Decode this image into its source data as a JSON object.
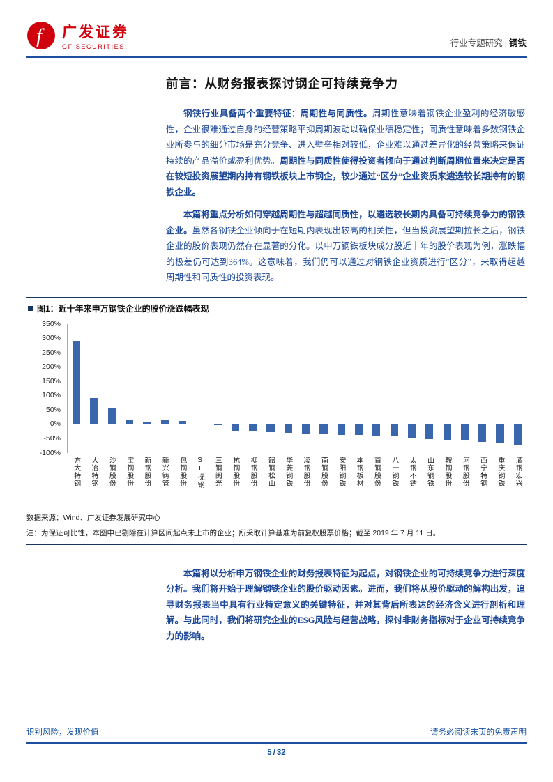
{
  "colors": {
    "brand_red": "#d0000d",
    "rule_blue": "#1e4fa0",
    "body_blue": "#1b4796",
    "bar_blue": "#3a66ad",
    "footer_blue": "#1551a0",
    "caption_navy": "#17365d"
  },
  "header": {
    "brand": {
      "name_cn": "广发证券",
      "name_en": "GF SECURITIES"
    },
    "right": {
      "category": "行业专题研究",
      "divider": "|",
      "industry": "钢铁"
    }
  },
  "title": "前言：从财务报表探讨钢企可持续竞争力",
  "body": {
    "paragraphs": [
      {
        "runs": [
          {
            "t": "钢铁行业具备两个重要特征：周期性与同质性。",
            "b": true
          },
          {
            "t": "周期性意味着钢铁企业盈利的经济敏感性，企业很难通过自身的经营策略平抑周期波动以确保业绩稳定性；同质性意味着多数钢铁企业所参与的细分市场是充分竞争、进入壁垒相对较低，企业难以通过差异化的经营策略来保证持续的产品溢价或盈利优势。",
            "b": false
          },
          {
            "t": "周期性与同质性使得投资者倾向于通过判断周期位置来决定是否在较短投资展望期内持有钢铁板块上市钢企，较少通过“区分”企业资质来遴选较长期持有的钢铁企业。",
            "b": true
          }
        ]
      },
      {
        "runs": [
          {
            "t": "本篇将重点分析如何穿越周期性与超越同质性，以遴选较长期内具备可持续竞争力的钢铁企业。",
            "b": true
          },
          {
            "t": "虽然各钢铁企业倾向于在短期内表现出较高的相关性，但当投资展望期拉长之后，钢铁企业的股价表现仍然存在显著的分化。以申万钢铁板块成分股近十年的股价表现为例，涨跌幅的极差仍可达到364%。这意味着，我们仍可以通过对钢铁企业资质进行“区分”，来取得超越周期性和同质性的投资表现。",
            "b": false
          }
        ]
      }
    ],
    "closing": {
      "runs": [
        {
          "t": "本篇将以分析申万钢铁企业的财务报表特征为起点，对钢铁企业的可持续竞争力进行深度分析。我们将开始于理解钢铁企业的股价驱动因素。进而，我们将从股价驱动的解构出发，追寻财务报表当中具有行业特定意义的关键特征，并对其背后所表达的经济含义进行剖析和理解。与此同时，我们将研究企业的ESG风险与经营战略，探讨非财务指标对于企业可持续竞争力的影响。",
          "b": true
        }
      ]
    }
  },
  "figure": {
    "caption": "图1：近十年来申万钢铁企业的股价涨跌幅表现",
    "source": "数据来源：Wind、广发证券发展研究中心",
    "note": "注：为保证可比性，本图中已剔除在计算区间起点未上市的企业；所采取计算基准为前复权股票价格；截至 2019 年 7 月 11 日。"
  },
  "chart_data": {
    "type": "bar",
    "title": "近十年来申万钢铁企业的股价涨跌幅表现",
    "categories": [
      "方大特钢",
      "大冶特钢",
      "沙钢股份",
      "宝钢股份",
      "新钢股份",
      "新兴铸管",
      "包钢股份",
      "ST抚钢",
      "三钢闽光",
      "杭钢股份",
      "柳钢股份",
      "韶钢松山",
      "华菱钢铁",
      "凌钢股份",
      "南钢股份",
      "安阳钢铁",
      "本钢板材",
      "首钢股份",
      "八一钢铁",
      "太钢不锈",
      "山东钢铁",
      "鞍钢股份",
      "河钢股份",
      "西宁特钢",
      "重庆钢铁",
      "酒钢宏兴"
    ],
    "values": [
      290,
      90,
      55,
      16,
      8,
      13,
      11,
      2,
      -5,
      -25,
      -27,
      -29,
      -31,
      -33,
      -35,
      -37,
      -39,
      -41,
      -44,
      -50,
      -53,
      -55,
      -58,
      -62,
      -67,
      -74
    ],
    "unit": "%",
    "xlabel": "",
    "ylabel": "",
    "ylim": [
      -100,
      350
    ],
    "ytick_step": 50,
    "yticks": [
      "350%",
      "300%",
      "250%",
      "200%",
      "150%",
      "100%",
      "50%",
      "0%",
      "-50%",
      "-100%"
    ],
    "grid": false,
    "legend": "none"
  },
  "footer": {
    "left": "识别风险，发现价值",
    "right": "请务必阅读末页的免责声明",
    "page_current": "5",
    "page_separator": "/",
    "page_total": "32"
  }
}
